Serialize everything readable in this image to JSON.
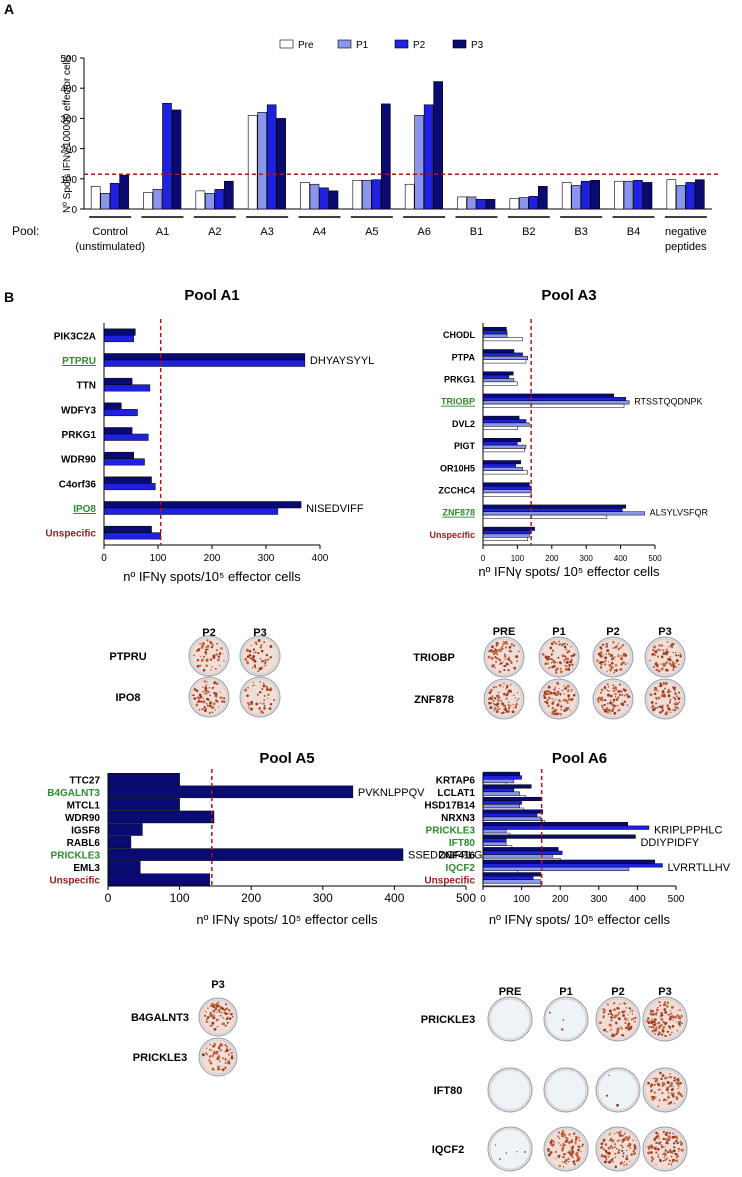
{
  "figure": {
    "panel_a_letter": "A",
    "panel_b_letter": "B"
  },
  "colors": {
    "pre": "#ffffff",
    "p1": "#8a95ec",
    "p2": "#1e22e0",
    "p3": "#0a0b72",
    "threshold": "#b01515",
    "green_label": "#2e8b2e",
    "red_label": "#9b1b1b"
  },
  "chart_data": [
    {
      "id": "panelA",
      "type": "bar",
      "ylabel": "Nº Spots IFNγ/100000 effector cells",
      "xlabel": "Pool:",
      "ylim": [
        0,
        500
      ],
      "yticks": [
        0,
        100,
        200,
        300,
        400,
        500
      ],
      "threshold": 115,
      "legend": [
        "Pre",
        "P1",
        "P2",
        "P3"
      ],
      "legend_position": "top-right",
      "categories": [
        "Control",
        "A1",
        "A2",
        "A3",
        "A4",
        "A5",
        "A6",
        "B1",
        "B2",
        "B3",
        "B4",
        "negative"
      ],
      "category_sublabels": [
        "(unstimulated)",
        "",
        "",
        "",
        "",
        "",
        "",
        "",
        "",
        "",
        "",
        "peptides"
      ],
      "series": [
        {
          "name": "Pre",
          "values": [
            75,
            55,
            60,
            310,
            88,
            95,
            82,
            40,
            35,
            88,
            92,
            97
          ]
        },
        {
          "name": "P1",
          "values": [
            52,
            65,
            52,
            320,
            82,
            95,
            310,
            40,
            38,
            78,
            92,
            78
          ]
        },
        {
          "name": "P2",
          "values": [
            85,
            350,
            65,
            345,
            70,
            97,
            345,
            32,
            42,
            92,
            95,
            88
          ]
        },
        {
          "name": "P3",
          "values": [
            112,
            328,
            92,
            300,
            60,
            348,
            422,
            32,
            75,
            95,
            88,
            97
          ]
        }
      ]
    },
    {
      "id": "poolA1",
      "type": "bar",
      "orientation": "horizontal",
      "title": "Pool  A1",
      "xlabel": "nº IFNγ spots/10⁵ effector cells",
      "xlim": [
        0,
        400
      ],
      "xticks": [
        0,
        100,
        200,
        300,
        400
      ],
      "threshold": 105,
      "categories": [
        "PIK3C2A",
        "PTPRU",
        "TTN",
        "WDFY3",
        "PRKG1",
        "WDR90",
        "C4orf36",
        "IPO8",
        "Unspecific"
      ],
      "label_colors": [
        "black",
        "green",
        "black",
        "black",
        "black",
        "black",
        "black",
        "green",
        "red"
      ],
      "label_underline": [
        false,
        true,
        false,
        false,
        false,
        false,
        false,
        true,
        false
      ],
      "series": [
        {
          "name": "P3",
          "values": [
            58,
            372,
            52,
            32,
            52,
            55,
            88,
            365,
            88
          ]
        },
        {
          "name": "P2",
          "values": [
            55,
            372,
            85,
            62,
            82,
            75,
            95,
            322,
            105
          ]
        }
      ],
      "annotations": [
        {
          "category": "PTPRU",
          "text": "DHYAYSYYL"
        },
        {
          "category": "IPO8",
          "text": "NISEDVIFF"
        }
      ]
    },
    {
      "id": "poolA3",
      "type": "bar",
      "orientation": "horizontal",
      "title": "Pool A3",
      "xlabel": "nº IFNγ spots/ 10⁵ effector cells",
      "xlim": [
        0,
        500
      ],
      "xticks": [
        0,
        100,
        200,
        300,
        400,
        500
      ],
      "threshold": 140,
      "categories": [
        "CHODL",
        "PTPA",
        "PRKG1",
        "TRIOBP",
        "DVL2",
        "PIGT",
        "OR10H5",
        "ZCCHC4",
        "ZNF878",
        "Unspecific"
      ],
      "label_colors": [
        "black",
        "black",
        "black",
        "green",
        "black",
        "black",
        "black",
        "black",
        "green",
        "red"
      ],
      "label_underline": [
        false,
        false,
        false,
        true,
        false,
        false,
        false,
        false,
        true,
        false
      ],
      "series": [
        {
          "name": "P3",
          "values": [
            68,
            90,
            88,
            380,
            105,
            110,
            110,
            135,
            415,
            150
          ]
        },
        {
          "name": "P2",
          "values": [
            70,
            115,
            75,
            415,
            125,
            100,
            95,
            140,
            405,
            140
          ]
        },
        {
          "name": "P1",
          "values": [
            70,
            130,
            90,
            425,
            135,
            125,
            115,
            140,
            470,
            135
          ]
        },
        {
          "name": "Pre",
          "values": [
            115,
            125,
            100,
            410,
            100,
            120,
            130,
            140,
            360,
            130
          ]
        }
      ],
      "annotations": [
        {
          "category": "TRIOBP",
          "text": "RTSSTQQDNPK"
        },
        {
          "category": "ZNF878",
          "text": "ALSYLVSFQR"
        }
      ]
    },
    {
      "id": "poolA5",
      "type": "bar",
      "orientation": "horizontal",
      "title": "Pool  A5",
      "xlabel": "nº IFNγ spots/ 10⁵ effector cells",
      "xlim": [
        0,
        500
      ],
      "xticks": [
        0,
        100,
        200,
        300,
        400,
        500
      ],
      "threshold": 145,
      "categories": [
        "TTC27",
        "B4GALNT3",
        "MTCL1",
        "WDR90",
        "IGSF8",
        "RABL6",
        "PRICKLE3",
        "EML3",
        "Unspecific"
      ],
      "label_colors": [
        "black",
        "green",
        "black",
        "black",
        "black",
        "black",
        "green",
        "black",
        "red"
      ],
      "label_underline": [
        false,
        false,
        false,
        false,
        false,
        false,
        false,
        false,
        false
      ],
      "series": [
        {
          "name": "P3",
          "values": [
            100,
            342,
            100,
            148,
            48,
            32,
            412,
            45,
            142
          ]
        }
      ],
      "annotations": [
        {
          "category": "B4GALNT3",
          "text": "PVKNLPPQV"
        },
        {
          "category": "PRICKLE3",
          "text": "SSEDDGFFLGK"
        }
      ]
    },
    {
      "id": "poolA6",
      "type": "bar",
      "orientation": "horizontal",
      "title": "Pool A6",
      "xlabel": "nº IFNγ spots/ 10⁵ effector cells",
      "xlim": [
        0,
        500
      ],
      "xticks": [
        0,
        100,
        200,
        300,
        400,
        500
      ],
      "threshold": 152,
      "categories": [
        "KRTAP6",
        "LCLAT1",
        "HSD17B14",
        "NRXN3",
        "PRICKLE3",
        "IFT80",
        "ZNF416",
        "IQCF2",
        "Unspecific"
      ],
      "label_colors": [
        "black",
        "black",
        "black",
        "black",
        "green",
        "green",
        "black",
        "green",
        "red"
      ],
      "label_underline": [
        false,
        false,
        false,
        false,
        false,
        false,
        false,
        false,
        false
      ],
      "series": [
        {
          "name": "P3",
          "values": [
            95,
            125,
            150,
            155,
            375,
            395,
            195,
            445,
            150
          ]
        },
        {
          "name": "P2",
          "values": [
            100,
            80,
            100,
            140,
            430,
            60,
            205,
            465,
            130
          ]
        },
        {
          "name": "P1",
          "values": [
            80,
            95,
            95,
            150,
            60,
            60,
            180,
            378,
            150
          ]
        },
        {
          "name": "Pre",
          "values": [
            60,
            110,
            105,
            160,
            70,
            75,
            200,
            90,
            150
          ]
        }
      ],
      "annotations": [
        {
          "category": "PRICKLE3",
          "text": "KRIPLPPHLC"
        },
        {
          "category": "IFT80",
          "text": "DDIYPIDFY"
        },
        {
          "category": "IQCF2",
          "text": "LVRRTLLHV"
        }
      ]
    }
  ],
  "elispot": [
    {
      "id": "wellsA1",
      "columns": [
        "P2",
        "P3"
      ],
      "rows": [
        {
          "label": "PTPRU",
          "density": [
            0.35,
            0.3
          ]
        },
        {
          "label": "IPO8",
          "density": [
            0.45,
            0.3
          ]
        }
      ]
    },
    {
      "id": "wellsA3",
      "columns": [
        "PRE",
        "P1",
        "P2",
        "P3"
      ],
      "rows": [
        {
          "label": "TRIOBP",
          "density": [
            0.5,
            0.5,
            0.5,
            0.5
          ]
        },
        {
          "label": "ZNF878",
          "density": [
            0.5,
            0.55,
            0.5,
            0.55
          ]
        }
      ]
    },
    {
      "id": "wellsA5",
      "columns": [
        "P3"
      ],
      "rows": [
        {
          "label": "B4GALNT3",
          "density": [
            0.45
          ]
        },
        {
          "label": "PRICKLE3",
          "density": [
            0.4
          ]
        }
      ]
    },
    {
      "id": "wellsA6",
      "columns": [
        "PRE",
        "P1",
        "P2",
        "P3"
      ],
      "rows": [
        {
          "label": "PRICKLE3",
          "density": [
            0.0,
            0.02,
            0.55,
            0.7
          ]
        },
        {
          "label": "IFT80",
          "density": [
            0.0,
            0.0,
            0.02,
            0.55
          ]
        },
        {
          "label": "IQCF2",
          "density": [
            0.03,
            0.65,
            0.65,
            0.7
          ]
        }
      ]
    }
  ]
}
